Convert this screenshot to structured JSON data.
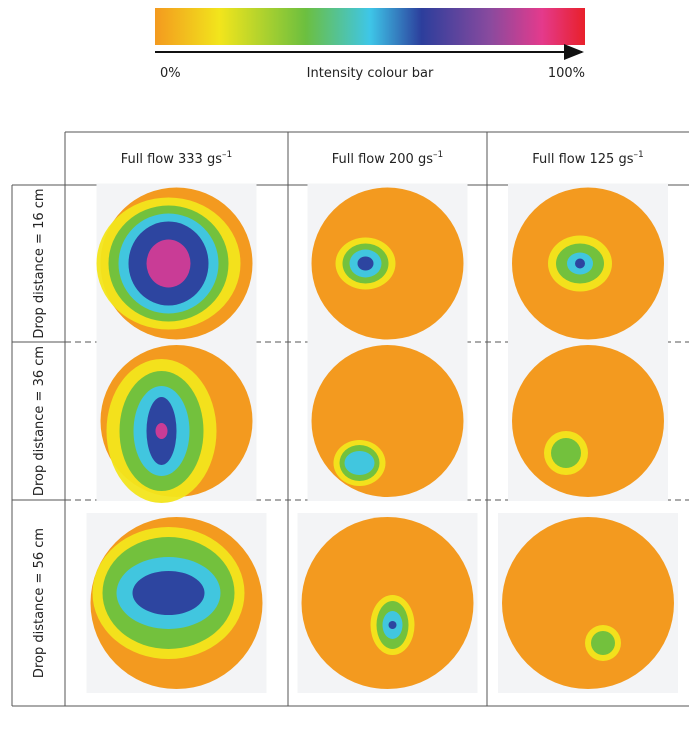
{
  "colour_bar": {
    "min_label": "0%",
    "label": "Intensity colour bar",
    "max_label": "100%"
  },
  "table": {
    "columns": [
      {
        "text": "Full flow 333 gs",
        "sup": "–1"
      },
      {
        "text": "Full flow 200 gs",
        "sup": "–1"
      },
      {
        "text": "Full flow 125 gs",
        "sup": "–1"
      }
    ],
    "rows": [
      "Drop distance = 16 cm",
      "Drop distance = 36 cm",
      "Drop distance = 56 cm"
    ]
  }
}
